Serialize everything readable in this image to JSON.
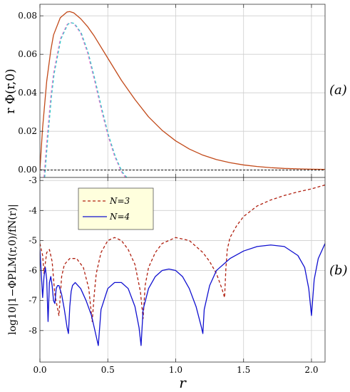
{
  "chart_data": [
    {
      "panel_label": "(a)",
      "type": "line",
      "ylabel": "r Φ(r,0)",
      "xlim": [
        0,
        2.1
      ],
      "ylim": [
        -0.004,
        0.086
      ],
      "yticks": [
        "0.00",
        "0.02",
        "0.04",
        "0.06",
        "0.08"
      ],
      "ytick_values": [
        0.0,
        0.02,
        0.04,
        0.06,
        0.08
      ],
      "grid": true,
      "series": [
        {
          "color": "#c24a1a",
          "style": "solid",
          "x": [
            0.0,
            0.02,
            0.05,
            0.08,
            0.1,
            0.15,
            0.2,
            0.22,
            0.25,
            0.3,
            0.35,
            0.4,
            0.5,
            0.6,
            0.7,
            0.8,
            0.9,
            1.0,
            1.1,
            1.2,
            1.3,
            1.4,
            1.5,
            1.6,
            1.7,
            1.8,
            1.9,
            2.0,
            2.1
          ],
          "y": [
            0.0,
            0.022,
            0.046,
            0.062,
            0.07,
            0.079,
            0.082,
            0.0822,
            0.0815,
            0.0785,
            0.0745,
            0.0695,
            0.058,
            0.0465,
            0.0365,
            0.0275,
            0.0205,
            0.015,
            0.0108,
            0.0076,
            0.0053,
            0.0037,
            0.0025,
            0.0017,
            0.0011,
            0.0007,
            0.0005,
            0.0003,
            0.0002
          ]
        },
        {
          "color": "#ff66cc",
          "style": "dashed",
          "x": [
            0.03,
            0.05,
            0.08,
            0.1,
            0.15,
            0.2,
            0.22,
            0.25,
            0.3,
            0.35,
            0.4,
            0.45,
            0.5,
            0.55,
            0.6,
            0.63
          ],
          "y": [
            -0.004,
            0.014,
            0.038,
            0.05,
            0.068,
            0.0755,
            0.0765,
            0.076,
            0.071,
            0.061,
            0.047,
            0.032,
            0.018,
            0.007,
            -0.001,
            -0.004
          ]
        },
        {
          "color": "#33cccc",
          "style": "dashed",
          "x": [
            0.035,
            0.055,
            0.085,
            0.105,
            0.155,
            0.205,
            0.225,
            0.255,
            0.305,
            0.355,
            0.405,
            0.455,
            0.505,
            0.555,
            0.605,
            0.64
          ],
          "y": [
            -0.004,
            0.014,
            0.038,
            0.05,
            0.068,
            0.0755,
            0.0765,
            0.076,
            0.071,
            0.061,
            0.047,
            0.032,
            0.018,
            0.007,
            -0.001,
            -0.004
          ]
        }
      ]
    },
    {
      "panel_label": "(b)",
      "type": "line",
      "ylabel": "log10|1−ΦPLM(r,0)/fN(r)|",
      "xlabel": "r",
      "xlim": [
        0,
        2.1
      ],
      "ylim": [
        -9.05,
        -2.9
      ],
      "xticks": [
        "0.0",
        "0.5",
        "1.0",
        "1.5",
        "2.0"
      ],
      "xtick_values": [
        0.0,
        0.5,
        1.0,
        1.5,
        2.0
      ],
      "yticks": [
        "-3",
        "-4",
        "-5",
        "-6",
        "-7",
        "-8"
      ],
      "ytick_values": [
        -3,
        -4,
        -5,
        -6,
        -7,
        -8
      ],
      "grid": true,
      "legend": {
        "placement": "upper-left",
        "entries": [
          {
            "label": "N=3",
            "color": "#b02010",
            "style": "dashed"
          },
          {
            "label": "N=4",
            "color": "#1010d0",
            "style": "solid"
          }
        ]
      },
      "series": [
        {
          "name": "N=3",
          "color": "#b02010",
          "style": "dashed",
          "x": [
            0.0,
            0.02,
            0.03,
            0.05,
            0.07,
            0.09,
            0.11,
            0.14,
            0.16,
            0.18,
            0.22,
            0.27,
            0.32,
            0.36,
            0.385,
            0.4,
            0.415,
            0.45,
            0.5,
            0.55,
            0.6,
            0.65,
            0.7,
            0.74,
            0.76,
            0.775,
            0.8,
            0.85,
            0.9,
            1.0,
            1.1,
            1.2,
            1.25,
            1.3,
            1.34,
            1.36,
            1.37,
            1.38,
            1.4,
            1.45,
            1.5,
            1.6,
            1.7,
            1.8,
            1.9,
            2.0,
            2.1
          ],
          "y": [
            -5.1,
            -5.5,
            -6.1,
            -5.4,
            -5.3,
            -5.7,
            -6.8,
            -7.5,
            -6.2,
            -5.8,
            -5.6,
            -5.6,
            -5.9,
            -6.6,
            -7.7,
            -6.8,
            -6.1,
            -5.4,
            -5.0,
            -4.9,
            -5.0,
            -5.3,
            -5.8,
            -6.7,
            -7.6,
            -6.5,
            -5.9,
            -5.4,
            -5.1,
            -4.9,
            -5.0,
            -5.4,
            -5.7,
            -6.1,
            -6.6,
            -6.9,
            -5.9,
            -5.3,
            -4.9,
            -4.5,
            -4.2,
            -3.85,
            -3.65,
            -3.5,
            -3.38,
            -3.28,
            -3.15
          ]
        },
        {
          "name": "N=4",
          "color": "#1010d0",
          "style": "solid",
          "x": [
            0.0,
            0.01,
            0.02,
            0.03,
            0.04,
            0.05,
            0.06,
            0.07,
            0.08,
            0.09,
            0.1,
            0.11,
            0.12,
            0.13,
            0.14,
            0.16,
            0.18,
            0.2,
            0.21,
            0.22,
            0.23,
            0.24,
            0.26,
            0.3,
            0.34,
            0.38,
            0.41,
            0.43,
            0.45,
            0.5,
            0.55,
            0.6,
            0.65,
            0.7,
            0.73,
            0.745,
            0.76,
            0.8,
            0.85,
            0.9,
            0.95,
            1.0,
            1.05,
            1.1,
            1.15,
            1.19,
            1.2,
            1.21,
            1.25,
            1.3,
            1.4,
            1.5,
            1.6,
            1.7,
            1.8,
            1.9,
            1.95,
            1.98,
            2.0,
            2.02,
            2.05,
            2.1
          ],
          "y": [
            -5.3,
            -6.1,
            -6.9,
            -6.2,
            -5.9,
            -6.3,
            -7.7,
            -6.4,
            -6.2,
            -6.5,
            -7.0,
            -7.1,
            -6.6,
            -6.5,
            -6.5,
            -6.8,
            -7.3,
            -7.9,
            -8.1,
            -7.2,
            -6.7,
            -6.5,
            -6.4,
            -6.6,
            -7.0,
            -7.5,
            -8.1,
            -8.5,
            -7.3,
            -6.6,
            -6.4,
            -6.4,
            -6.6,
            -7.2,
            -7.9,
            -8.5,
            -7.3,
            -6.6,
            -6.2,
            -6.0,
            -5.95,
            -6.0,
            -6.2,
            -6.6,
            -7.2,
            -7.9,
            -8.1,
            -7.3,
            -6.5,
            -6.0,
            -5.6,
            -5.35,
            -5.2,
            -5.15,
            -5.2,
            -5.5,
            -5.9,
            -6.6,
            -7.5,
            -6.3,
            -5.6,
            -5.1
          ]
        }
      ]
    }
  ]
}
